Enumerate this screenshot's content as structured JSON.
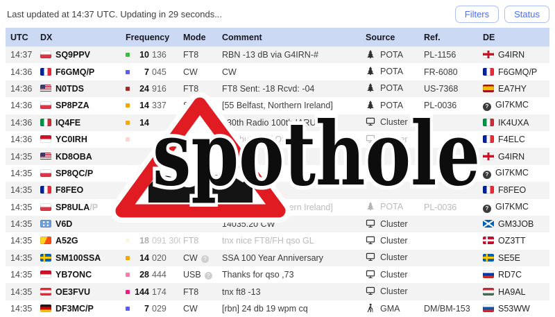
{
  "topbar": {
    "status_text": "Last updated at 14:37 UTC. Updating in 29 seconds...",
    "filters_label": "Filters",
    "status_label": "Status"
  },
  "watermark": {
    "text": "spothole"
  },
  "table": {
    "headers": [
      "UTC",
      "DX",
      "Frequency",
      "Mode",
      "Comment",
      "Source",
      "Ref.",
      "DE"
    ]
  },
  "colors": {
    "header_bg": "#ccd9f4",
    "accent_blue": "#4c6ef5",
    "watermark_red": "#e01b22"
  },
  "spots": [
    {
      "utc": "14:37",
      "dx_flag": "pl",
      "dx": "SQ9PPV",
      "band_color": "#3dbf3d",
      "freq_mhz": "10",
      "freq_khz": "136",
      "mode": "FT8",
      "comment": "RBN -13 dB via G4IRN-#",
      "source_icon": "tree-icon",
      "source": "POTA",
      "ref": "PL-1156",
      "de_flag": "gb-eng",
      "de": "G4IRN"
    },
    {
      "utc": "14:36",
      "dx_flag": "fr",
      "dx": "F6GMQ/P",
      "band_color": "#5c5cf0",
      "freq_mhz": "7",
      "freq_khz": "045",
      "mode": "CW",
      "comment": "CW",
      "source_icon": "tree-icon",
      "source": "POTA",
      "ref": "FR-6080",
      "de_flag": "fr",
      "de": "F6GMQ/P"
    },
    {
      "utc": "14:36",
      "dx_flag": "us",
      "dx": "N0TDS",
      "band_color": "#a52a2a",
      "freq_mhz": "24",
      "freq_khz": "916",
      "mode": "FT8",
      "comment": "FT8 Sent: -18 Rcvd: -04",
      "source_icon": "tree-icon",
      "source": "POTA",
      "ref": "US-7368",
      "de_flag": "es",
      "de": "EA7HY"
    },
    {
      "utc": "14:36",
      "dx_flag": "pl",
      "dx": "SP8PZA",
      "band_color": "#f5a800",
      "freq_mhz": "14",
      "freq_khz": "337",
      "mode": "SSB",
      "comment": "[55 Belfast, Northern Ireland]",
      "source_icon": "tree-icon",
      "source": "POTA",
      "ref": "PL-0036",
      "de_flag": "unknown",
      "de": "GI7KMC"
    },
    {
      "utc": "14:36",
      "dx_flag": "it",
      "dx": "IQ4FE",
      "band_color": "#f5a800",
      "freq_mhz": "14",
      "freq_khz": "",
      "mode": "FT8",
      "comment": "130th Radio 100th IARU FT8",
      "source_icon": "monitor-icon",
      "source": "Cluster",
      "ref": "",
      "de_flag": "it",
      "de": "IK4UXA"
    },
    {
      "utc": "14:36",
      "dx_flag": "id",
      "dx": "YC0IRH",
      "band_color": "#ffd2da",
      "freq_mhz": "",
      "freq_khz": "",
      "mode": "",
      "comment": "ITL, but lot of QSB...",
      "source_icon": "monitor-icon",
      "source": "Cluster",
      "ref": "",
      "de_flag": "fr",
      "de": "F4ELC"
    },
    {
      "utc": "14:35",
      "dx_flag": "us",
      "dx": "KD8OBA",
      "band_color": null,
      "freq_mhz": "",
      "freq_khz": "",
      "mode": "",
      "comment": "",
      "source_icon": null,
      "source": "",
      "ref": "",
      "de_flag": "gb-eng",
      "de": "G4IRN"
    },
    {
      "utc": "14:35",
      "dx_flag": "pl",
      "dx": "SP8QC/P",
      "band_color": null,
      "freq_mhz": "",
      "freq_khz": "",
      "mode": "",
      "comment": "",
      "source_icon": null,
      "source": "",
      "ref": "",
      "de_flag": "unknown",
      "de": "GI7KMC"
    },
    {
      "utc": "14:35",
      "dx_flag": "fr",
      "dx": "F8FEO",
      "band_color": null,
      "freq_mhz": "",
      "freq_khz": "",
      "mode": "",
      "comment": "",
      "source_icon": null,
      "source": "",
      "ref": "",
      "de_flag": "fr",
      "de": "F8FEO"
    },
    {
      "utc": "14:35",
      "dx_flag": "pl",
      "dx": "SP8ULA",
      "dx_suffix": "/P",
      "band_color": null,
      "freq_mhz": "",
      "freq_khz": "",
      "mode": "",
      "comment": "[55 Belfast, Northern Ireland]",
      "source_icon": "tree-icon",
      "source": "POTA",
      "ref": "PL-0036",
      "de_flag": "unknown",
      "de": "GI7KMC"
    },
    {
      "utc": "14:35",
      "dx_flag": "fm",
      "dx": "V6D",
      "band_color": null,
      "freq_mhz": "",
      "freq_khz": "",
      "mode": "",
      "comment": "14035.20 CW",
      "source_icon": "monitor-icon",
      "source": "Cluster",
      "ref": "",
      "de_flag": "gb-sct",
      "de": "GM3JOB"
    },
    {
      "utc": "14:35",
      "dx_flag": "bt",
      "dx": "A52G",
      "band_color": "#f3e9b0",
      "freq_mhz": "18",
      "freq_khz": "091 300",
      "mode": "FT8",
      "comment": "tnx nice FT8/FH qso GL",
      "source_icon": "monitor-icon",
      "source": "Cluster",
      "ref": "",
      "de_flag": "dk",
      "de": "OZ3TT"
    },
    {
      "utc": "14:35",
      "dx_flag": "se",
      "dx": "SM100SSA",
      "band_color": "#f5a800",
      "freq_mhz": "14",
      "freq_khz": "020",
      "mode": "CW",
      "mode_unsure": true,
      "comment": "SSA 100 Year Anniversary",
      "source_icon": "monitor-icon",
      "source": "Cluster",
      "ref": "",
      "de_flag": "se",
      "de": "SE5E"
    },
    {
      "utc": "14:35",
      "dx_flag": "id",
      "dx": "YB7ONC",
      "band_color": "#ff7bac",
      "freq_mhz": "28",
      "freq_khz": "444",
      "mode": "USB",
      "mode_unsure": true,
      "comment": "Thanks for qso ,73",
      "source_icon": "monitor-icon",
      "source": "Cluster",
      "ref": "",
      "de_flag": "ru",
      "de": "RD7C"
    },
    {
      "utc": "14:35",
      "dx_flag": "at",
      "dx": "OE3FVU",
      "band_color": "#f01d7f",
      "freq_mhz": "144",
      "freq_khz": "174",
      "mode": "FT8",
      "comment": "tnx ft8 -13",
      "source_icon": "monitor-icon",
      "source": "Cluster",
      "ref": "",
      "de_flag": "hu",
      "de": "HA9AL"
    },
    {
      "utc": "14:35",
      "dx_flag": "de",
      "dx": "DF3MC/P",
      "band_color": "#5c5cf0",
      "freq_mhz": "7",
      "freq_khz": "029",
      "mode": "CW",
      "comment": "[rbn] 24 db 19 wpm cq",
      "source_icon": "hiker-icon",
      "source": "GMA",
      "ref": "DM/BM-153",
      "de_flag": "si",
      "de": "S53WW"
    }
  ]
}
